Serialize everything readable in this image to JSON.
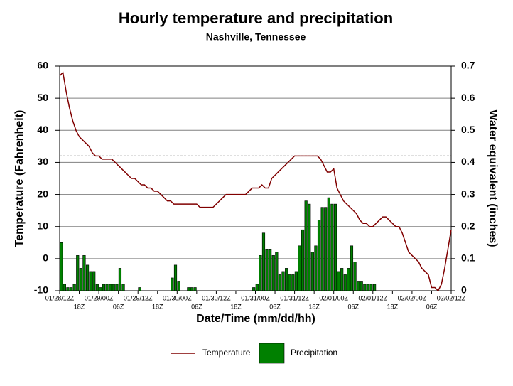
{
  "chart_data": {
    "type": "line",
    "title": "Hourly temperature and precipitation",
    "subtitle": "Nashville, Tennessee",
    "xlabel": "Date/Time (mm/dd/hh)",
    "ylabel": "Temperature (Fahrenheit)",
    "y2label": "Water equivalent (inches)",
    "xlim": [
      0,
      120
    ],
    "ylim": [
      -10,
      60
    ],
    "yticks": [
      -10,
      0,
      10,
      20,
      30,
      40,
      50,
      60
    ],
    "y2lim": [
      0,
      0.7
    ],
    "y2ticks": [
      0,
      0.1,
      0.2,
      0.3,
      0.4,
      0.5,
      0.6,
      0.7
    ],
    "xticks": [
      {
        "value": 0,
        "label": "01/28/12Z"
      },
      {
        "value": 6,
        "label": "18Z"
      },
      {
        "value": 12,
        "label": "01/29/00Z"
      },
      {
        "value": 18,
        "label": "06Z"
      },
      {
        "value": 24,
        "label": "01/29/12Z"
      },
      {
        "value": 30,
        "label": "18Z"
      },
      {
        "value": 36,
        "label": "01/30/00Z"
      },
      {
        "value": 42,
        "label": "06Z"
      },
      {
        "value": 48,
        "label": "01/30/12Z"
      },
      {
        "value": 54,
        "label": "18Z"
      },
      {
        "value": 60,
        "label": "01/31/00Z"
      },
      {
        "value": 66,
        "label": "06Z"
      },
      {
        "value": 72,
        "label": "01/31/12Z"
      },
      {
        "value": 78,
        "label": "18Z"
      },
      {
        "value": 84,
        "label": "02/01/00Z"
      },
      {
        "value": 90,
        "label": "06Z"
      },
      {
        "value": 96,
        "label": "02/01/12Z"
      },
      {
        "value": 102,
        "label": "18Z"
      },
      {
        "value": 108,
        "label": "02/02/00Z"
      },
      {
        "value": 114,
        "label": "06Z"
      },
      {
        "value": 120,
        "label": "02/02/12Z"
      }
    ],
    "grid": true,
    "freezing_line": 32,
    "series": [
      {
        "name": "Temperature",
        "type": "line",
        "color": "#800000",
        "x": [
          0,
          1,
          2,
          3,
          4,
          5,
          6,
          7,
          8,
          9,
          10,
          11,
          12,
          13,
          14,
          15,
          16,
          17,
          18,
          19,
          20,
          21,
          22,
          23,
          24,
          25,
          26,
          27,
          28,
          29,
          30,
          31,
          32,
          33,
          34,
          35,
          36,
          37,
          38,
          39,
          40,
          41,
          42,
          43,
          44,
          45,
          46,
          47,
          48,
          49,
          50,
          51,
          52,
          53,
          54,
          55,
          56,
          57,
          58,
          59,
          60,
          61,
          62,
          63,
          64,
          65,
          66,
          67,
          68,
          69,
          70,
          71,
          72,
          73,
          74,
          75,
          76,
          77,
          78,
          79,
          80,
          81,
          82,
          83,
          84,
          85,
          86,
          87,
          88,
          89,
          90,
          91,
          92,
          93,
          94,
          95,
          96,
          97,
          98,
          99,
          100,
          101,
          102,
          103,
          104,
          105,
          106,
          107,
          108,
          109,
          110,
          111,
          112,
          113,
          114,
          115,
          116,
          117,
          118,
          119,
          120
        ],
        "values": [
          57,
          58,
          52,
          47,
          43,
          40,
          38,
          37,
          36,
          35,
          33,
          32,
          32,
          31,
          31,
          31,
          31,
          30,
          29,
          28,
          27,
          26,
          25,
          25,
          24,
          23,
          23,
          22,
          22,
          21,
          21,
          20,
          19,
          18,
          18,
          17,
          17,
          17,
          17,
          17,
          17,
          17,
          17,
          16,
          16,
          16,
          16,
          16,
          17,
          18,
          19,
          20,
          20,
          20,
          20,
          20,
          20,
          20,
          21,
          22,
          22,
          22,
          23,
          22,
          22,
          25,
          26,
          27,
          28,
          29,
          30,
          31,
          32,
          32,
          32,
          32,
          32,
          32,
          32,
          32,
          31,
          29,
          27,
          27,
          28,
          22,
          20,
          18,
          17,
          16,
          15,
          14,
          12,
          11,
          11,
          10,
          10,
          11,
          12,
          13,
          13,
          12,
          11,
          10,
          10,
          8,
          5,
          2,
          1,
          0,
          -1,
          -3,
          -4,
          -5,
          -9,
          -9,
          -10,
          -8,
          -3,
          3,
          9
        ]
      },
      {
        "name": "Precipitation",
        "type": "bar",
        "axis": "y2",
        "color": "#008000",
        "x": [
          0,
          1,
          2,
          3,
          4,
          5,
          6,
          7,
          8,
          9,
          10,
          11,
          12,
          13,
          14,
          15,
          16,
          17,
          18,
          19,
          24,
          34,
          35,
          36,
          39,
          40,
          41,
          59,
          60,
          61,
          62,
          63,
          64,
          65,
          66,
          67,
          68,
          69,
          70,
          71,
          72,
          73,
          74,
          75,
          76,
          77,
          78,
          79,
          80,
          81,
          82,
          83,
          84,
          85,
          86,
          87,
          88,
          89,
          90,
          91,
          92,
          93,
          94,
          95,
          96
        ],
        "values": [
          0.15,
          0.02,
          0.01,
          0.01,
          0.02,
          0.11,
          0.07,
          0.11,
          0.08,
          0.06,
          0.06,
          0.02,
          0.01,
          0.02,
          0.02,
          0.02,
          0.02,
          0.02,
          0.07,
          0.02,
          0.01,
          0.04,
          0.08,
          0.03,
          0.01,
          0.01,
          0.01,
          0.01,
          0.02,
          0.11,
          0.18,
          0.13,
          0.13,
          0.11,
          0.12,
          0.05,
          0.06,
          0.07,
          0.05,
          0.05,
          0.06,
          0.14,
          0.19,
          0.28,
          0.27,
          0.12,
          0.14,
          0.22,
          0.26,
          0.26,
          0.29,
          0.27,
          0.27,
          0.06,
          0.07,
          0.05,
          0.07,
          0.14,
          0.09,
          0.03,
          0.03,
          0.02,
          0.02,
          0.02,
          0.02
        ]
      }
    ]
  }
}
